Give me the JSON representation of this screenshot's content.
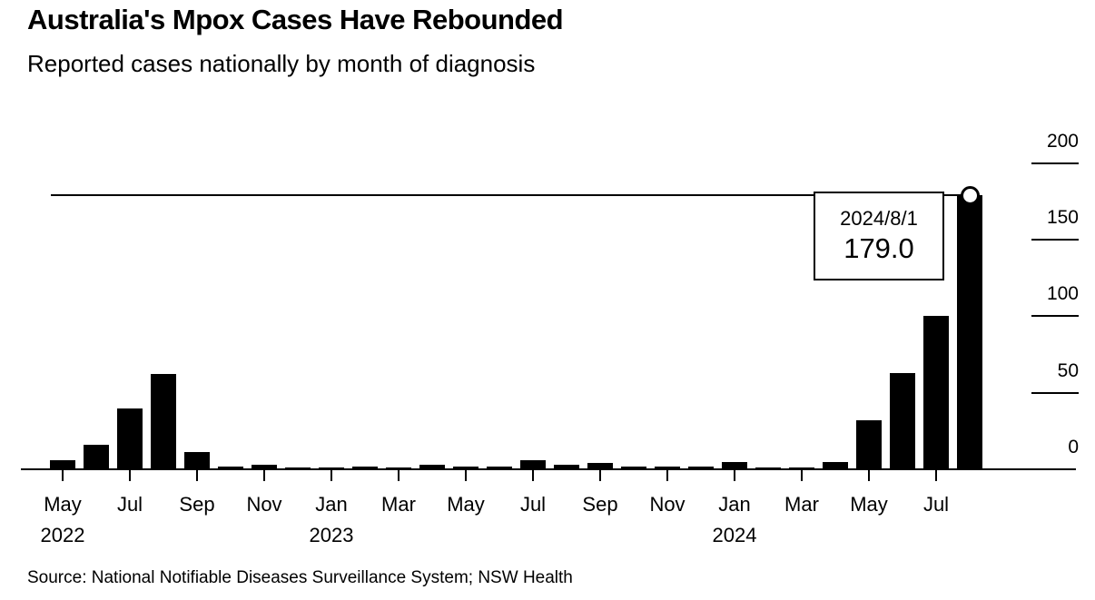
{
  "header": {
    "title": "Australia's Mpox Cases Have Rebounded",
    "subtitle": "Reported cases nationally by month of diagnosis"
  },
  "tooltip": {
    "date": "2024/8/1",
    "value": "179.0"
  },
  "footer": {
    "source": "Source: National Notifiable Diseases Surveillance System; NSW Health"
  },
  "chart_data": {
    "type": "bar",
    "title": "Australia's Mpox Cases Have Rebounded",
    "subtitle": "Reported cases nationally by month of diagnosis",
    "xlabel": "",
    "ylabel": "",
    "x": [
      "2022-05",
      "2022-06",
      "2022-07",
      "2022-08",
      "2022-09",
      "2022-10",
      "2022-11",
      "2022-12",
      "2023-01",
      "2023-02",
      "2023-03",
      "2023-04",
      "2023-05",
      "2023-06",
      "2023-07",
      "2023-08",
      "2023-09",
      "2023-10",
      "2023-11",
      "2023-12",
      "2024-01",
      "2024-02",
      "2024-03",
      "2024-04",
      "2024-05",
      "2024-06",
      "2024-07",
      "2024-08"
    ],
    "values": [
      6,
      16,
      40,
      62,
      11,
      2,
      3,
      1,
      1,
      2,
      1,
      3,
      2,
      2,
      6,
      3,
      4,
      2,
      2,
      2,
      5,
      1,
      1,
      5,
      32,
      63,
      100,
      179
    ],
    "x_ticks": [
      {
        "index": 0,
        "label": "May",
        "year": "2022"
      },
      {
        "index": 2,
        "label": "Jul"
      },
      {
        "index": 4,
        "label": "Sep"
      },
      {
        "index": 6,
        "label": "Nov"
      },
      {
        "index": 8,
        "label": "Jan",
        "year": "2023"
      },
      {
        "index": 10,
        "label": "Mar"
      },
      {
        "index": 12,
        "label": "May"
      },
      {
        "index": 14,
        "label": "Jul"
      },
      {
        "index": 16,
        "label": "Sep"
      },
      {
        "index": 18,
        "label": "Nov"
      },
      {
        "index": 20,
        "label": "Jan",
        "year": "2024"
      },
      {
        "index": 22,
        "label": "Mar"
      },
      {
        "index": 24,
        "label": "May"
      },
      {
        "index": 26,
        "label": "Jul"
      }
    ],
    "y_ticks": [
      200,
      150,
      100,
      50,
      0
    ],
    "ylim": [
      0,
      210
    ],
    "grid": false,
    "legend": "none",
    "bar_color": "#000000",
    "background_color": "#ffffff",
    "annotation": {
      "x": "2024-08",
      "value": 179.0,
      "date_label": "2024/8/1",
      "value_label": "179.0",
      "reference_line_value": 179,
      "marker": "open-circle"
    }
  }
}
